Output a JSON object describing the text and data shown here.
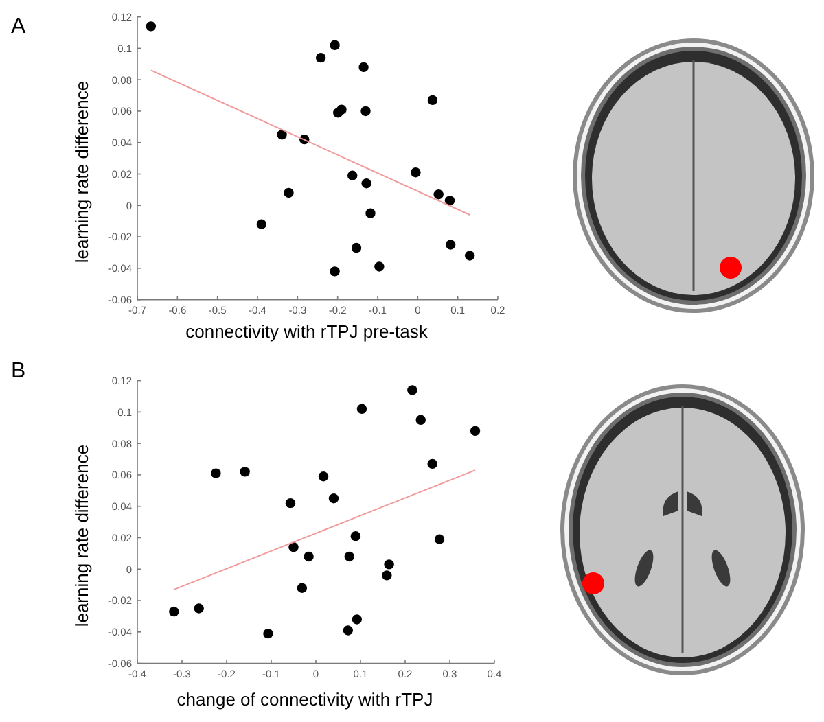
{
  "chart_data": [
    {
      "type": "scatter",
      "title": "A",
      "xlabel": "connectivity with rTPJ pre-task",
      "ylabel": "learning rate difference",
      "xlim": [
        -0.7,
        0.2
      ],
      "ylim": [
        -0.06,
        0.12
      ],
      "xticks": [
        -0.7,
        -0.6,
        -0.5,
        -0.4,
        -0.3,
        -0.2,
        -0.1,
        0,
        0.1,
        0.2
      ],
      "yticks": [
        -0.06,
        -0.04,
        -0.02,
        0,
        0.02,
        0.04,
        0.06,
        0.08,
        0.1,
        0.12
      ],
      "series": [
        {
          "color": "#000000",
          "marker": "circle",
          "x": [
            -0.666,
            -0.207,
            -0.242,
            -0.135,
            0.037,
            -0.199,
            -0.19,
            -0.13,
            -0.339,
            -0.283,
            -0.163,
            -0.005,
            -0.322,
            -0.128,
            0.052,
            0.08,
            -0.118,
            -0.39,
            -0.153,
            0.082,
            0.13,
            -0.207,
            -0.096
          ],
          "values": [
            0.114,
            0.102,
            0.094,
            0.088,
            0.067,
            0.059,
            0.061,
            0.06,
            0.045,
            0.042,
            0.019,
            0.021,
            0.008,
            0.014,
            0.007,
            0.003,
            -0.005,
            -0.012,
            -0.027,
            -0.025,
            -0.032,
            -0.042,
            -0.039
          ]
        },
        {
          "type": "line",
          "color": "#f29a9a",
          "x": [
            -0.666,
            0.13
          ],
          "values": [
            0.086,
            -0.006
          ]
        }
      ]
    },
    {
      "type": "scatter",
      "title": "B",
      "xlabel": "change of connectivity with rTPJ",
      "ylabel": "learning rate difference",
      "xlim": [
        -0.4,
        0.4
      ],
      "ylim": [
        -0.06,
        0.12
      ],
      "xticks": [
        -0.4,
        -0.3,
        -0.2,
        -0.1,
        0,
        0.1,
        0.2,
        0.3,
        0.4
      ],
      "yticks": [
        -0.06,
        -0.04,
        -0.02,
        0,
        0.02,
        0.04,
        0.06,
        0.08,
        0.1,
        0.12
      ],
      "series": [
        {
          "color": "#000000",
          "marker": "circle",
          "x": [
            -0.318,
            -0.262,
            -0.224,
            -0.159,
            -0.107,
            -0.057,
            -0.05,
            -0.016,
            -0.031,
            0.017,
            0.04,
            0.075,
            0.089,
            0.072,
            0.092,
            0.103,
            0.159,
            0.164,
            0.216,
            0.235,
            0.261,
            0.277,
            0.357
          ],
          "values": [
            -0.027,
            -0.025,
            0.061,
            0.062,
            -0.041,
            0.042,
            0.014,
            0.008,
            -0.012,
            0.059,
            0.045,
            0.008,
            0.021,
            -0.039,
            -0.032,
            0.102,
            -0.004,
            0.003,
            0.114,
            0.095,
            0.067,
            0.019,
            0.088
          ]
        },
        {
          "type": "line",
          "color": "#f29a9a",
          "x": [
            -0.318,
            0.357
          ],
          "values": [
            -0.013,
            0.063
          ]
        }
      ]
    }
  ]
}
